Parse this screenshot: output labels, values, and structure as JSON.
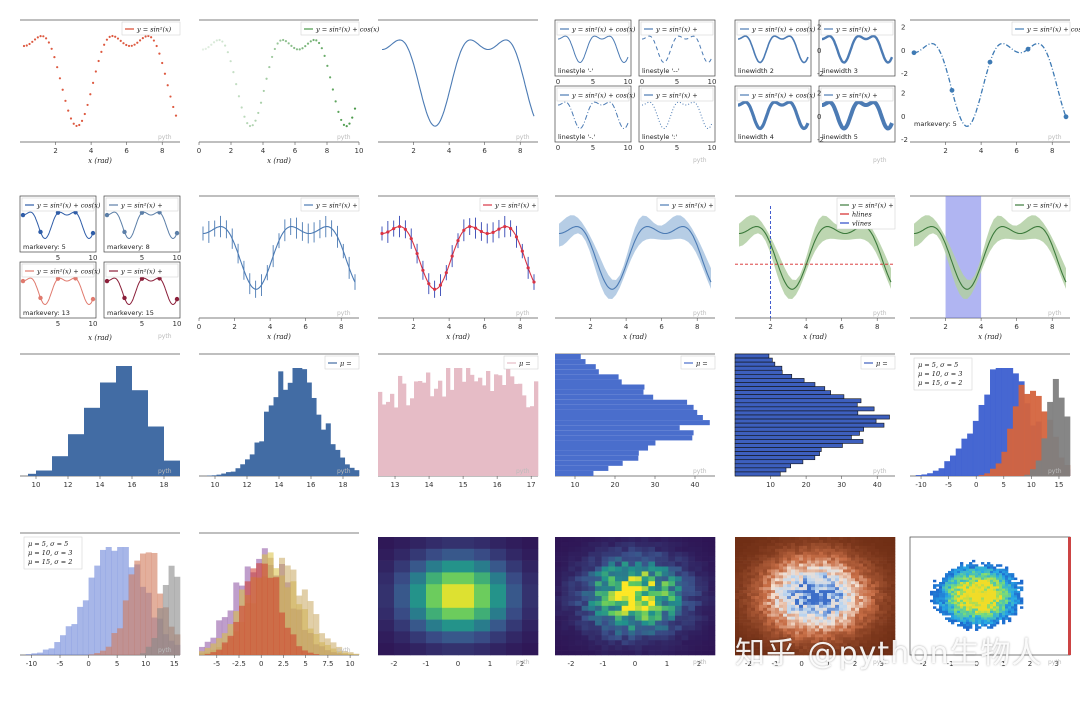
{
  "watermark": "知乎 @python生物人",
  "corner_mark": "pyth",
  "chart_data": [
    {
      "id": "p1",
      "type": "scatter",
      "legend": "y = sin²(x)",
      "xlabel": "x (rad)",
      "xticks": [
        2,
        4,
        6,
        8
      ],
      "xlim": [
        0,
        9
      ],
      "ylim": [
        -1.1,
        1.2
      ],
      "color": "#d9472b",
      "marker": "dot",
      "fn": "f"
    },
    {
      "id": "p2",
      "type": "scatter",
      "legend": "y = sin²(x) + cos(x)",
      "xlabel": "x (rad)",
      "xticks": [
        0,
        2,
        4,
        6,
        8,
        10
      ],
      "xlim": [
        0,
        10
      ],
      "ylim": [
        -1.1,
        1.3
      ],
      "color": "#4a9a4a",
      "marker": "dot",
      "fn": "f"
    },
    {
      "id": "p3",
      "type": "line",
      "xticks": [
        2,
        4,
        6,
        8
      ],
      "xlim": [
        0,
        9
      ],
      "ylim": [
        -1.1,
        1.3
      ],
      "color": "#4c7bb4",
      "fn": "f"
    },
    {
      "id": "p4",
      "type": "line",
      "subplots": [
        {
          "legend": "y = sin²(x) + cos(x)",
          "note": "linestyle '-'",
          "dash": "",
          "xticks": [
            0,
            5,
            10
          ]
        },
        {
          "legend": "y = sin²(x) +",
          "note": "linestyle '--'",
          "dash": "4,3",
          "xticks": [
            0,
            5,
            10
          ]
        },
        {
          "legend": "y = sin²(x) + cos(x)",
          "note": "linestyle '-.'",
          "dash": "5,2,1,2",
          "xticks": [
            0,
            5,
            10
          ]
        },
        {
          "legend": "y = sin²(x) +",
          "note": "linestyle ':'",
          "dash": "1,2",
          "xticks": [
            0,
            5,
            10
          ]
        }
      ],
      "color": "#4c7bb4",
      "fn": "f"
    },
    {
      "id": "p5",
      "type": "line",
      "subplots": [
        {
          "legend": "y = sin²(x) + cos(x)",
          "note": "linewidth 2",
          "width": 2,
          "yticks": [
            -2,
            0,
            2
          ]
        },
        {
          "legend": "y = sin²(x) +",
          "note": "linewidth 3",
          "width": 3,
          "yticks": [
            -2,
            0,
            2
          ]
        },
        {
          "legend": "y = sin²(x) + cos(x)",
          "note": "linewidth 4",
          "width": 4,
          "yticks": [
            -2,
            0,
            2
          ]
        },
        {
          "legend": "y = sin²(x) +",
          "note": "linewidth 5",
          "width": 5,
          "yticks": [
            -2,
            0,
            2
          ]
        }
      ],
      "color": "#4c7bb4",
      "fn": "f"
    },
    {
      "id": "p6",
      "type": "line",
      "legend": "y = sin²(x) + cos(x)",
      "note": "markevery: 5",
      "xticks": [
        2,
        4,
        6,
        8
      ],
      "xlim": [
        0,
        9
      ],
      "ylim": [
        -1.1,
        1.4
      ],
      "color": "#3e7ab4",
      "fn": "f"
    },
    {
      "id": "p7",
      "type": "line",
      "subplots": [
        {
          "legend": "y = sin²(x) + cos(x)",
          "note": "markevery: 5",
          "color": "#2f5da8"
        },
        {
          "legend": "y = sin²(x) +",
          "note": "markevery: 8",
          "color": "#5c7fa8"
        },
        {
          "legend": "y = sin²(x) + cos(x)",
          "note": "markevery: 13",
          "color": "#e07a6e"
        },
        {
          "legend": "y = sin²(x) +",
          "note": "markevery: 15",
          "color": "#8b1f3a"
        }
      ],
      "xticks": [
        5,
        10
      ],
      "xlabel": "x (rad)",
      "fn": "f"
    },
    {
      "id": "p8",
      "type": "errorbar",
      "legend": "y = sin²(x) +",
      "xlabel": "x (rad)",
      "xticks": [
        0,
        2,
        4,
        6,
        8
      ],
      "xlim": [
        0,
        9
      ],
      "ylim": [
        -1.6,
        1.7
      ],
      "color": "#4c7bb4",
      "fn": "f"
    },
    {
      "id": "p9",
      "type": "errorbar",
      "legend": "y = sin²(x) +",
      "xlabel": "x (rad)",
      "xticks": [
        2,
        4,
        6,
        8
      ],
      "xlim": [
        0,
        9
      ],
      "ylim": [
        -1.6,
        1.7
      ],
      "color": "#d93344",
      "ecolor": "#3346b4",
      "fn": "f"
    },
    {
      "id": "p10",
      "type": "area",
      "legend": "y = sin²(x) +",
      "xlabel": "x (rad)",
      "xticks": [
        2,
        4,
        6,
        8
      ],
      "xlim": [
        0,
        9
      ],
      "ylim": [
        -1.6,
        1.7
      ],
      "color": "#4c7bb4",
      "fill": "#a9c4e0",
      "fn": "f"
    },
    {
      "id": "p11",
      "type": "area",
      "legend": [
        "y = sin²(x) +",
        "hlines",
        "vlines"
      ],
      "xlabel": "x (rad)",
      "xticks": [
        2,
        4,
        6,
        8
      ],
      "xlim": [
        0,
        9
      ],
      "ylim": [
        -1.6,
        1.7
      ],
      "color": "#3c7a3c",
      "fill": "#b1cfa3",
      "hline": -0.1,
      "vline": 2,
      "fn": "f"
    },
    {
      "id": "p12",
      "type": "area",
      "legend": "y = sin²(x) +",
      "xlabel": "x (rad)",
      "xticks": [
        2,
        4,
        6,
        8
      ],
      "xlim": [
        0,
        9
      ],
      "ylim": [
        -1.6,
        1.7
      ],
      "color": "#3c7a3c",
      "fill": "#b1cfa3",
      "span": [
        2,
        4
      ],
      "fn": "f"
    },
    {
      "id": "p13",
      "type": "histogram",
      "xticks": [
        10,
        12,
        14,
        16,
        18
      ],
      "xlim": [
        9,
        19
      ],
      "color": "#426ca4",
      "bins": [
        [
          9.5,
          10,
          2
        ],
        [
          10,
          11,
          5
        ],
        [
          11,
          12,
          18
        ],
        [
          12,
          13,
          38
        ],
        [
          13,
          14,
          62
        ],
        [
          14,
          15,
          85
        ],
        [
          15,
          16,
          100
        ],
        [
          16,
          17,
          78
        ],
        [
          17,
          18,
          45
        ],
        [
          18,
          19,
          14
        ]
      ]
    },
    {
      "id": "p14",
      "type": "histogram",
      "legend": "μ =",
      "xticks": [
        10,
        12,
        14,
        16,
        18
      ],
      "xlim": [
        9,
        19
      ],
      "color": "#426ca4",
      "gauss": {
        "mu": 15,
        "sigma": 1.6,
        "n": 32,
        "from": 9.5,
        "to": 19
      }
    },
    {
      "id": "p15",
      "type": "histogram",
      "legend": "μ =",
      "xticks": [
        13,
        14,
        15,
        16,
        17
      ],
      "xlim": [
        12.5,
        17.2
      ],
      "color": "#e6bcc6",
      "gauss": {
        "mu": 15,
        "sigma": 1.8,
        "n": 40,
        "from": 12.5,
        "to": 17.2,
        "flat": 0.55
      }
    },
    {
      "id": "p16",
      "type": "histogram",
      "orientation": "horizontal",
      "legend": "μ =",
      "xticks": [
        10,
        20,
        30,
        40
      ],
      "xlim": [
        5,
        45
      ],
      "color": "#4a6ecc",
      "gauss": {
        "mu": 0.55,
        "sigma": 0.25,
        "n": 24,
        "from": 0,
        "to": 1,
        "peak": 42,
        "base": 8
      }
    },
    {
      "id": "p17",
      "type": "histogram",
      "orientation": "horizontal",
      "legend": "μ =",
      "xticks": [
        10,
        20,
        30,
        40
      ],
      "xlim": [
        0,
        45
      ],
      "color": "#3d5fbe",
      "edge": "#111111",
      "gauss": {
        "mu": 0.55,
        "sigma": 0.22,
        "n": 30,
        "from": 0,
        "to": 1,
        "peak": 42,
        "base": 8
      }
    },
    {
      "id": "p18",
      "type": "histogram",
      "legend": [
        "μ = 5, σ = 5",
        "μ = 10, σ = 3",
        "μ = 15, σ = 2"
      ],
      "xticks": [
        -10,
        -5,
        0,
        5,
        10,
        15
      ],
      "xlim": [
        -12,
        17
      ],
      "series": [
        {
          "mu": 5,
          "sigma": 5,
          "color": "#3c5fd0"
        },
        {
          "mu": 10,
          "sigma": 3,
          "color": "#d4643e"
        },
        {
          "mu": 15,
          "sigma": 2,
          "color": "#7f7f7f"
        }
      ]
    },
    {
      "id": "p19",
      "type": "histogram",
      "legend": [
        "μ = 5, σ = 5",
        "μ = 10, σ = 3",
        "μ = 15, σ = 2"
      ],
      "xticks": [
        -10,
        -5,
        0,
        5,
        10,
        15
      ],
      "xlim": [
        -12,
        16
      ],
      "alpha": 0.6,
      "series": [
        {
          "mu": 5,
          "sigma": 5,
          "color": "#6d85d8"
        },
        {
          "mu": 10,
          "sigma": 3,
          "color": "#d07a5a"
        },
        {
          "mu": 15,
          "sigma": 2,
          "color": "#888888"
        }
      ]
    },
    {
      "id": "p20",
      "type": "histogram",
      "xticks": [
        -5,
        -2.5,
        0,
        2.5,
        5,
        7.5,
        10
      ],
      "xlim": [
        -7,
        11
      ],
      "alpha": 0.55,
      "series": [
        {
          "mu": 0,
          "sigma": 3,
          "color": "#8a4fa0"
        },
        {
          "mu": 1,
          "sigma": 3,
          "color": "#d8c040"
        },
        {
          "mu": 2,
          "sigma": 3,
          "color": "#c8a860"
        },
        {
          "mu": 0,
          "sigma": 2,
          "color": "#d03a2a"
        }
      ]
    },
    {
      "id": "p21",
      "type": "heatmap",
      "xticks": [
        -2,
        -1,
        0,
        1,
        2
      ],
      "xlim": [
        -2.5,
        2.5
      ],
      "n": 10,
      "sigma": 1.1,
      "cmap": "viridis"
    },
    {
      "id": "p22",
      "type": "heatmap",
      "xticks": [
        -2,
        -1,
        0,
        1,
        2
      ],
      "xlim": [
        -2.5,
        2.5
      ],
      "n": 24,
      "sigma": 1.0,
      "cmap": "viridis",
      "noise": 0.45
    },
    {
      "id": "p23",
      "type": "heatmap",
      "xticks": [
        -2,
        -1,
        0,
        1,
        2,
        3
      ],
      "xlim": [
        -2.5,
        3.5
      ],
      "n": 40,
      "sigma": 1.0,
      "cmap": "copper",
      "noise": 0.35
    },
    {
      "id": "p24",
      "type": "heatmap",
      "xticks": [
        -2,
        -1,
        0,
        1,
        2,
        3
      ],
      "xlim": [
        -2.5,
        3.5
      ],
      "n": 40,
      "sigma": 0.9,
      "cmap": "jet",
      "noise": 0.4,
      "blob": true
    }
  ]
}
